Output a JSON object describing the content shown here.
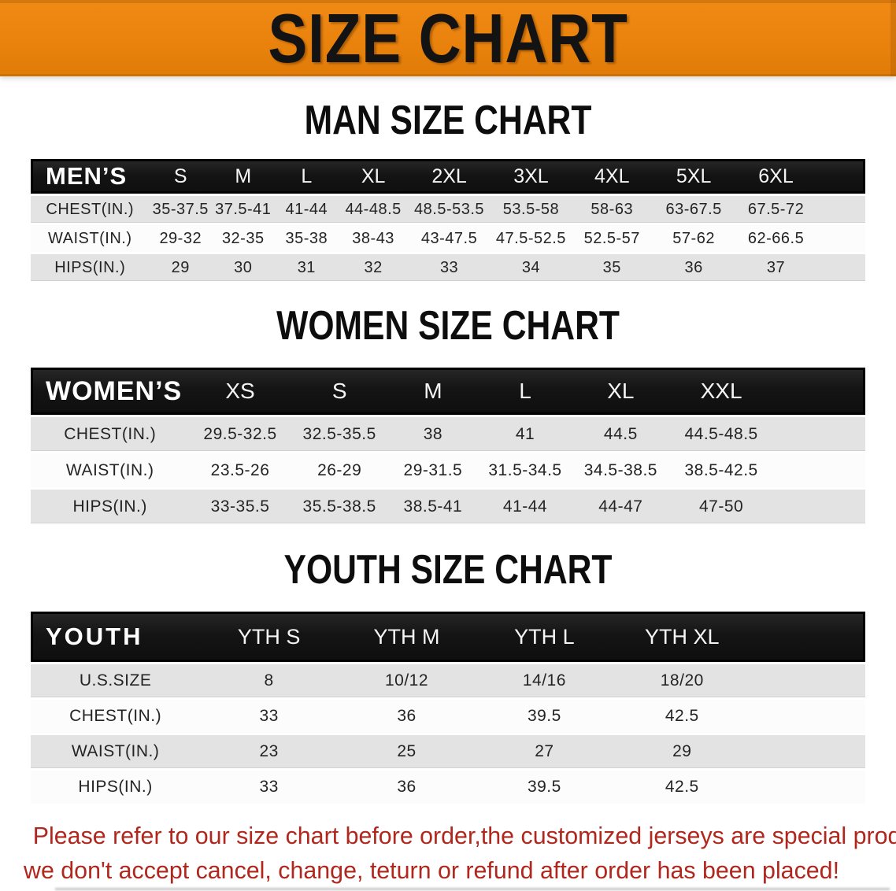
{
  "banner": {
    "title": "SIZE CHART",
    "bg_color": "#E9830D",
    "text_color": "#131313"
  },
  "sections": [
    {
      "heading": "MAN SIZE CHART",
      "table": {
        "label": "MEN’S",
        "sizes": [
          "S",
          "M",
          "L",
          "XL",
          "2XL",
          "3XL",
          "4XL",
          "5XL",
          "6XL"
        ],
        "rows": [
          {
            "label": "CHEST(IN.)",
            "values": [
              "35-37.5",
              "37.5-41",
              "41-44",
              "44-48.5",
              "48.5-53.5",
              "53.5-58",
              "58-63",
              "63-67.5",
              "67.5-72"
            ]
          },
          {
            "label": "WAIST(IN.)",
            "values": [
              "29-32",
              "32-35",
              "35-38",
              "38-43",
              "43-47.5",
              "47.5-52.5",
              "52.5-57",
              "57-62",
              "62-66.5"
            ]
          },
          {
            "label": "HIPS(IN.)",
            "values": [
              "29",
              "30",
              "31",
              "32",
              "33",
              "34",
              "35",
              "36",
              "37"
            ]
          }
        ]
      }
    },
    {
      "heading": "WOMEN SIZE CHART",
      "table": {
        "label": "WOMEN’S",
        "sizes": [
          "XS",
          "S",
          "M",
          "L",
          "XL",
          "XXL"
        ],
        "rows": [
          {
            "label": "CHEST(IN.)",
            "values": [
              "29.5-32.5",
              "32.5-35.5",
              "38",
              "41",
              "44.5",
              "44.5-48.5"
            ]
          },
          {
            "label": "WAIST(IN.)",
            "values": [
              "23.5-26",
              "26-29",
              "29-31.5",
              "31.5-34.5",
              "34.5-38.5",
              "38.5-42.5"
            ]
          },
          {
            "label": "HIPS(IN.)",
            "values": [
              "33-35.5",
              "35.5-38.5",
              "38.5-41",
              "41-44",
              "44-47",
              "47-50"
            ]
          }
        ]
      }
    },
    {
      "heading": "YOUTH SIZE CHART",
      "table": {
        "label": "YOUTH",
        "sizes": [
          "YTH S",
          "YTH M",
          "YTH L",
          "YTH XL"
        ],
        "rows": [
          {
            "label": "U.S.SIZE",
            "values": [
              "8",
              "10/12",
              "14/16",
              "18/20"
            ]
          },
          {
            "label": "CHEST(IN.)",
            "values": [
              "33",
              "36",
              "39.5",
              "42.5"
            ]
          },
          {
            "label": "WAIST(IN.)",
            "values": [
              "23",
              "25",
              "27",
              "29"
            ]
          },
          {
            "label": "HIPS(IN.)",
            "values": [
              "33",
              "36",
              "39.5",
              "42.5"
            ]
          }
        ]
      }
    }
  ],
  "table_style": {
    "header_bg": "#141414",
    "header_text": "#FFFFFF",
    "stripe_gray": "#E3E3E3",
    "stripe_white": "#FCFCFC"
  },
  "disclaimer": {
    "color": "#B0271E",
    "line1": "Please refer to our size chart before order,the customized jerseys are special products,",
    "line2": "we don't accept cancel, change, teturn or refund after order has been placed!"
  }
}
